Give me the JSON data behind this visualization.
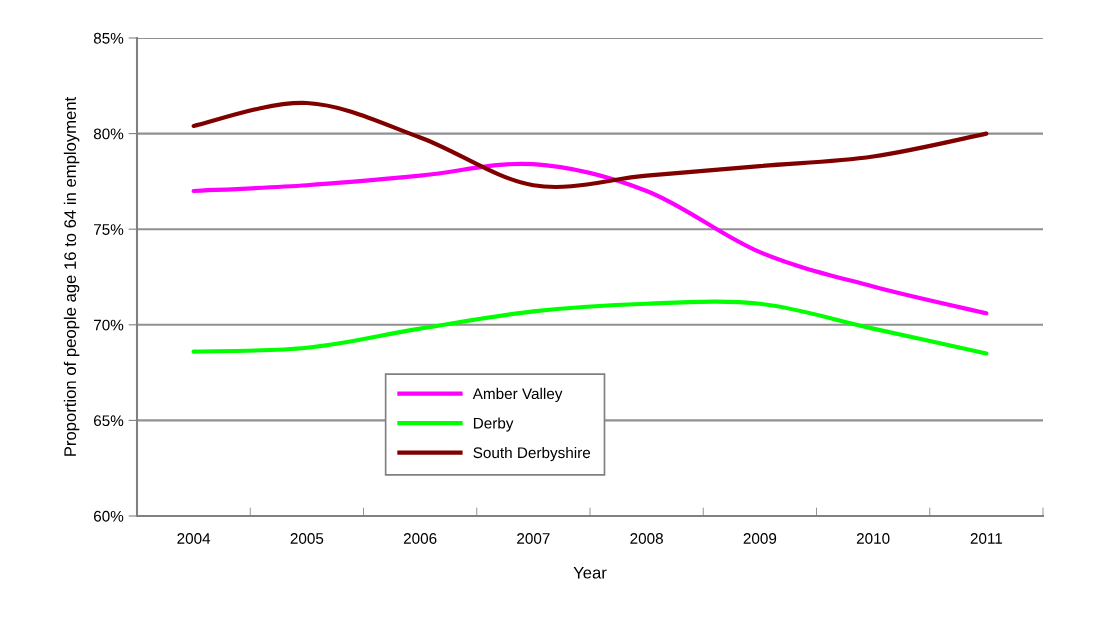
{
  "chart_data": {
    "type": "line",
    "xlabel": "Year",
    "ylabel": "Proportion of people age 16 to 64 in employment",
    "categories": [
      "2004",
      "2005",
      "2006",
      "2007",
      "2008",
      "2009",
      "2010",
      "2011"
    ],
    "series": [
      {
        "name": "Amber Valley",
        "color": "#ff00ff",
        "values": [
          77.0,
          77.3,
          77.8,
          78.4,
          77.0,
          73.8,
          72.0,
          70.6
        ]
      },
      {
        "name": "Derby",
        "color": "#00ff00",
        "values": [
          68.6,
          68.8,
          69.8,
          70.7,
          71.1,
          71.1,
          69.8,
          68.5
        ]
      },
      {
        "name": "South Derbyshire",
        "color": "#800000",
        "values": [
          80.4,
          81.6,
          79.8,
          77.3,
          77.8,
          78.3,
          78.8,
          80.0
        ]
      }
    ],
    "ylim": [
      60,
      85
    ],
    "yticks": [
      {
        "value": 60,
        "label": "60%"
      },
      {
        "value": 65,
        "label": "65%"
      },
      {
        "value": 70,
        "label": "70%"
      },
      {
        "value": 75,
        "label": "75%"
      },
      {
        "value": 80,
        "label": "80%"
      },
      {
        "value": 85,
        "label": "85%"
      }
    ],
    "grid": "y",
    "legend": "bottom",
    "marker": "none",
    "line_style": "solid"
  }
}
